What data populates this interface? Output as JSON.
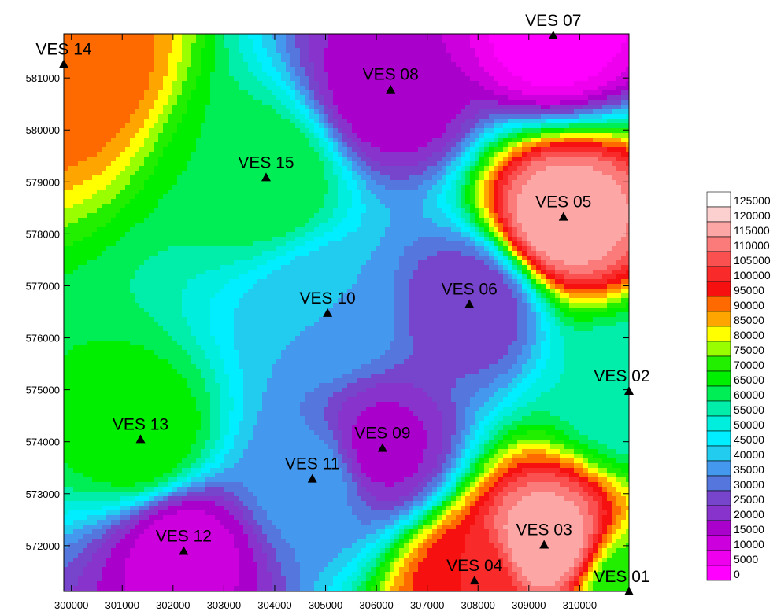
{
  "map": {
    "x_range": [
      299850,
      310970
    ],
    "y_range": [
      571120,
      581850
    ],
    "x_ticks": [
      300000,
      301000,
      302000,
      303000,
      304000,
      305000,
      306000,
      307000,
      308000,
      309000,
      310000
    ],
    "y_ticks": [
      572000,
      573000,
      574000,
      575000,
      576000,
      577000,
      578000,
      579000,
      580000,
      581000
    ],
    "y_tick_labels": [
      "572000",
      "573000",
      "574000",
      "575000",
      "576000",
      "577000",
      "578000",
      "579000",
      "580000",
      "581000"
    ],
    "x_tick_labels": [
      "300000",
      "301000",
      "302000",
      "303000",
      "304000",
      "305000",
      "306000",
      "307000",
      "308000",
      "309000",
      "310000"
    ],
    "points": [
      {
        "label": "VES 01",
        "x": 310970,
        "y": 571120
      },
      {
        "label": "VES 02",
        "x": 310970,
        "y": 574980
      },
      {
        "label": "VES 03",
        "x": 309300,
        "y": 572020
      },
      {
        "label": "VES 04",
        "x": 307930,
        "y": 571330
      },
      {
        "label": "VES 05",
        "x": 309680,
        "y": 578330
      },
      {
        "label": "VES 06",
        "x": 307830,
        "y": 576650
      },
      {
        "label": "VES 07",
        "x": 309480,
        "y": 581820
      },
      {
        "label": "VES 08",
        "x": 306280,
        "y": 580780
      },
      {
        "label": "VES 09",
        "x": 306120,
        "y": 573880
      },
      {
        "label": "VES 10",
        "x": 305040,
        "y": 576480
      },
      {
        "label": "VES 11",
        "x": 304740,
        "y": 573290
      },
      {
        "label": "VES 12",
        "x": 302210,
        "y": 571900
      },
      {
        "label": "VES 13",
        "x": 301360,
        "y": 574050
      },
      {
        "label": "VES 14",
        "x": 299850,
        "y": 581270
      },
      {
        "label": "VES 15",
        "x": 303830,
        "y": 579090
      }
    ],
    "field_value_at_ves_estimates": {
      "VES 01": 70000,
      "VES 02": 55000,
      "VES 03": 120000,
      "VES 04": 100000,
      "VES 05": 120000,
      "VES 06": 25000,
      "VES 07": 2000,
      "VES 08": 15000,
      "VES 09": 18000,
      "VES 10": 40000,
      "VES 11": 38000,
      "VES 12": 12000,
      "VES 13": 70000,
      "VES 14": 95000,
      "VES 15": 65000
    }
  },
  "legend": {
    "levels": [
      {
        "label": "125000",
        "color": "#ffffff"
      },
      {
        "label": "120000",
        "color": "#fdd0d0"
      },
      {
        "label": "115000",
        "color": "#fca6a6"
      },
      {
        "label": "110000",
        "color": "#fb7b7b"
      },
      {
        "label": "105000",
        "color": "#fa5050"
      },
      {
        "label": "100000",
        "color": "#f92a2a"
      },
      {
        "label": "95000",
        "color": "#f61010"
      },
      {
        "label": "90000",
        "color": "#ff6a00"
      },
      {
        "label": "85000",
        "color": "#ffa500"
      },
      {
        "label": "80000",
        "color": "#ffff00"
      },
      {
        "label": "75000",
        "color": "#99ff00"
      },
      {
        "label": "70000",
        "color": "#22ee00"
      },
      {
        "label": "65000",
        "color": "#00ee00"
      },
      {
        "label": "60000",
        "color": "#00ee55"
      },
      {
        "label": "55000",
        "color": "#00eeaa"
      },
      {
        "label": "50000",
        "color": "#00eedd"
      },
      {
        "label": "45000",
        "color": "#00eeff"
      },
      {
        "label": "40000",
        "color": "#22ccee"
      },
      {
        "label": "35000",
        "color": "#4499ee"
      },
      {
        "label": "30000",
        "color": "#5577dd"
      },
      {
        "label": "25000",
        "color": "#7744cc"
      },
      {
        "label": "20000",
        "color": "#8833cc"
      },
      {
        "label": "15000",
        "color": "#aa00cc"
      },
      {
        "label": "10000",
        "color": "#cc00dd"
      },
      {
        "label": "5000",
        "color": "#ee00ee"
      },
      {
        "label": "0",
        "color": "#ff00ff"
      }
    ]
  }
}
